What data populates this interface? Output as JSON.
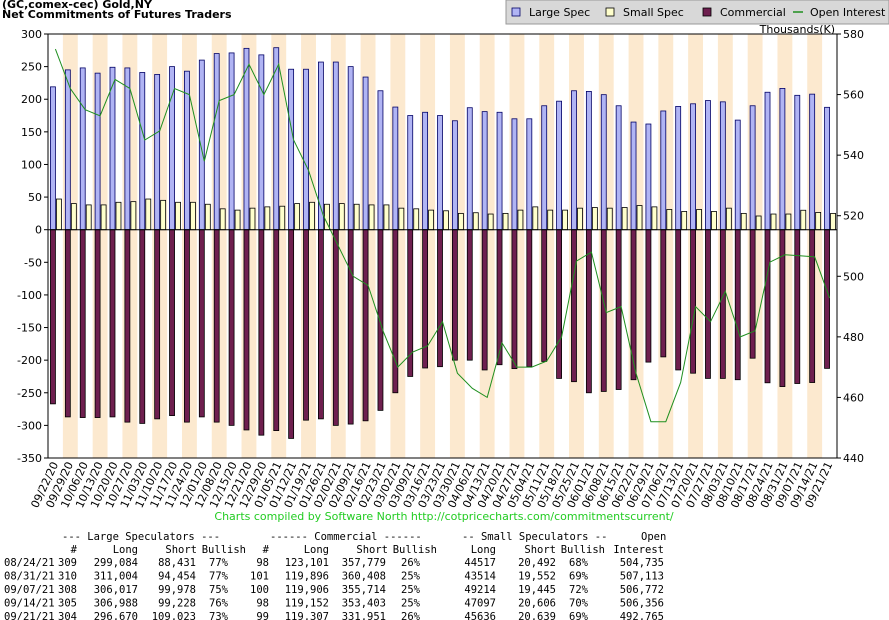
{
  "chart_data": {
    "type": "bar",
    "title": "(GC,comex-cec) Gold,NY",
    "subtitle": "Net Commitments of Futures Traders",
    "y2_label": "Thousands(K)",
    "categories": [
      "09/22/20",
      "09/29/20",
      "10/06/20",
      "10/13/20",
      "10/20/20",
      "10/27/20",
      "11/03/20",
      "11/10/20",
      "11/17/20",
      "11/24/20",
      "12/01/20",
      "12/08/20",
      "12/15/20",
      "12/21/20",
      "12/29/20",
      "01/05/21",
      "01/12/21",
      "01/19/21",
      "01/26/21",
      "02/02/21",
      "02/09/21",
      "02/16/21",
      "02/23/21",
      "03/02/21",
      "03/09/21",
      "03/16/21",
      "03/23/21",
      "03/30/21",
      "04/06/21",
      "04/13/21",
      "04/20/21",
      "04/27/21",
      "05/04/21",
      "05/11/21",
      "05/18/21",
      "05/25/21",
      "06/01/21",
      "06/08/21",
      "06/15/21",
      "06/22/21",
      "06/29/21",
      "07/06/21",
      "07/13/21",
      "07/20/21",
      "07/27/21",
      "08/03/21",
      "08/10/21",
      "08/17/21",
      "08/24/21",
      "08/31/21",
      "09/07/21",
      "09/14/21",
      "09/21/21"
    ],
    "series": [
      {
        "name": "Large Spec",
        "color": "#b0b4f4",
        "values": [
          219,
          245,
          248,
          240,
          249,
          248,
          241,
          238,
          250,
          243,
          260,
          270,
          271,
          278,
          268,
          279,
          246,
          246,
          257,
          257,
          250,
          234,
          213,
          188,
          175,
          180,
          175,
          167,
          187,
          181,
          180,
          170,
          170,
          190,
          197,
          213,
          212,
          207,
          190,
          165,
          162,
          182,
          189,
          193,
          198,
          196,
          168,
          190,
          210.7,
          216.6,
          206.0,
          207.8,
          187.6
        ]
      },
      {
        "name": "Small Spec",
        "color": "#ffffcc",
        "values": [
          47,
          40,
          38,
          38,
          42,
          43,
          47,
          45,
          42,
          42,
          39,
          32,
          30,
          33,
          35,
          36,
          40,
          42,
          39,
          40,
          39,
          38,
          38,
          33,
          32,
          30,
          29,
          25,
          26,
          24,
          25,
          30,
          35,
          30,
          30,
          33,
          34,
          33,
          34,
          37,
          35,
          31,
          28,
          31,
          28,
          33,
          25,
          21,
          24.0,
          24.0,
          29.8,
          26.5,
          25.0
        ]
      },
      {
        "name": "Commercial",
        "color": "#6e1f4f",
        "values": [
          -267,
          -287,
          -288,
          -288,
          -287,
          -295,
          -297,
          -290,
          -285,
          -295,
          -287,
          -295,
          -300,
          -307,
          -315,
          -308,
          -320,
          -292,
          -290,
          -300,
          -298,
          -293,
          -277,
          -250,
          -225,
          -212,
          -210,
          -200,
          -200,
          -215,
          -207,
          -213,
          -210,
          -202,
          -228,
          -233,
          -250,
          -248,
          -245,
          -230,
          -203,
          -195,
          -215,
          -220,
          -228,
          -228,
          -230,
          -197,
          -234.7,
          -240.5,
          -235.8,
          -234.3,
          -212.6
        ]
      },
      {
        "name": "Open Interest",
        "type": "line",
        "axis": "y2",
        "color": "#1f8f1f",
        "values": [
          575,
          562,
          555,
          553,
          565,
          562,
          545,
          548,
          562,
          560,
          538,
          558,
          560,
          570,
          560,
          570,
          545,
          535,
          520,
          510,
          500,
          497,
          482,
          470,
          475,
          477,
          485,
          468,
          463,
          460,
          478,
          470,
          470,
          472,
          480,
          505,
          508,
          488,
          490,
          468,
          452,
          452,
          465,
          490,
          485,
          495,
          480,
          482,
          504.7,
          507.1,
          506.8,
          506.4,
          492.8
        ]
      }
    ],
    "ylim": [
      -350,
      300
    ],
    "yticks": [
      -350,
      -300,
      -250,
      -200,
      -150,
      -100,
      -50,
      0,
      50,
      100,
      150,
      200,
      250,
      300
    ],
    "y2lim": [
      440,
      580
    ],
    "y2ticks": [
      440,
      460,
      480,
      500,
      520,
      540,
      560,
      580
    ],
    "band_color": "#fce9cf"
  },
  "footer": "Charts compiled by Software North  http://cotpricecharts.com/commitmentscurrent/",
  "table": {
    "group_headers": [
      "--- Large Speculators ---",
      "------ Commercial ------",
      "-- Small Speculators --",
      "Open"
    ],
    "headers": [
      "#",
      "Long",
      "Short",
      "Bullish",
      "#",
      "Long",
      "Short",
      "Bullish",
      "Long",
      "Short",
      "Bullish",
      "Interest"
    ],
    "rows": [
      [
        "08/24/21",
        "309",
        "299,084",
        "88,431",
        "77%",
        "98",
        "123,101",
        "357,779",
        "26%",
        "44517",
        "20,492",
        "68%",
        "504,735"
      ],
      [
        "08/31/21",
        "310",
        "311,004",
        "94,454",
        "77%",
        "101",
        "119,896",
        "360,408",
        "25%",
        "43514",
        "19,552",
        "69%",
        "507,113"
      ],
      [
        "09/07/21",
        "308",
        "306,017",
        "99,978",
        "75%",
        "100",
        "119,906",
        "355,714",
        "25%",
        "49214",
        "19,445",
        "72%",
        "506,772"
      ],
      [
        "09/14/21",
        "305",
        "306,988",
        "99,228",
        "76%",
        "98",
        "119,152",
        "353,403",
        "25%",
        "47097",
        "20,606",
        "70%",
        "506,356"
      ],
      [
        "09/21/21",
        "304",
        "296,670",
        "109,023",
        "73%",
        "99",
        "119,307",
        "331,951",
        "26%",
        "45636",
        "20,639",
        "69%",
        "492,765"
      ]
    ]
  }
}
